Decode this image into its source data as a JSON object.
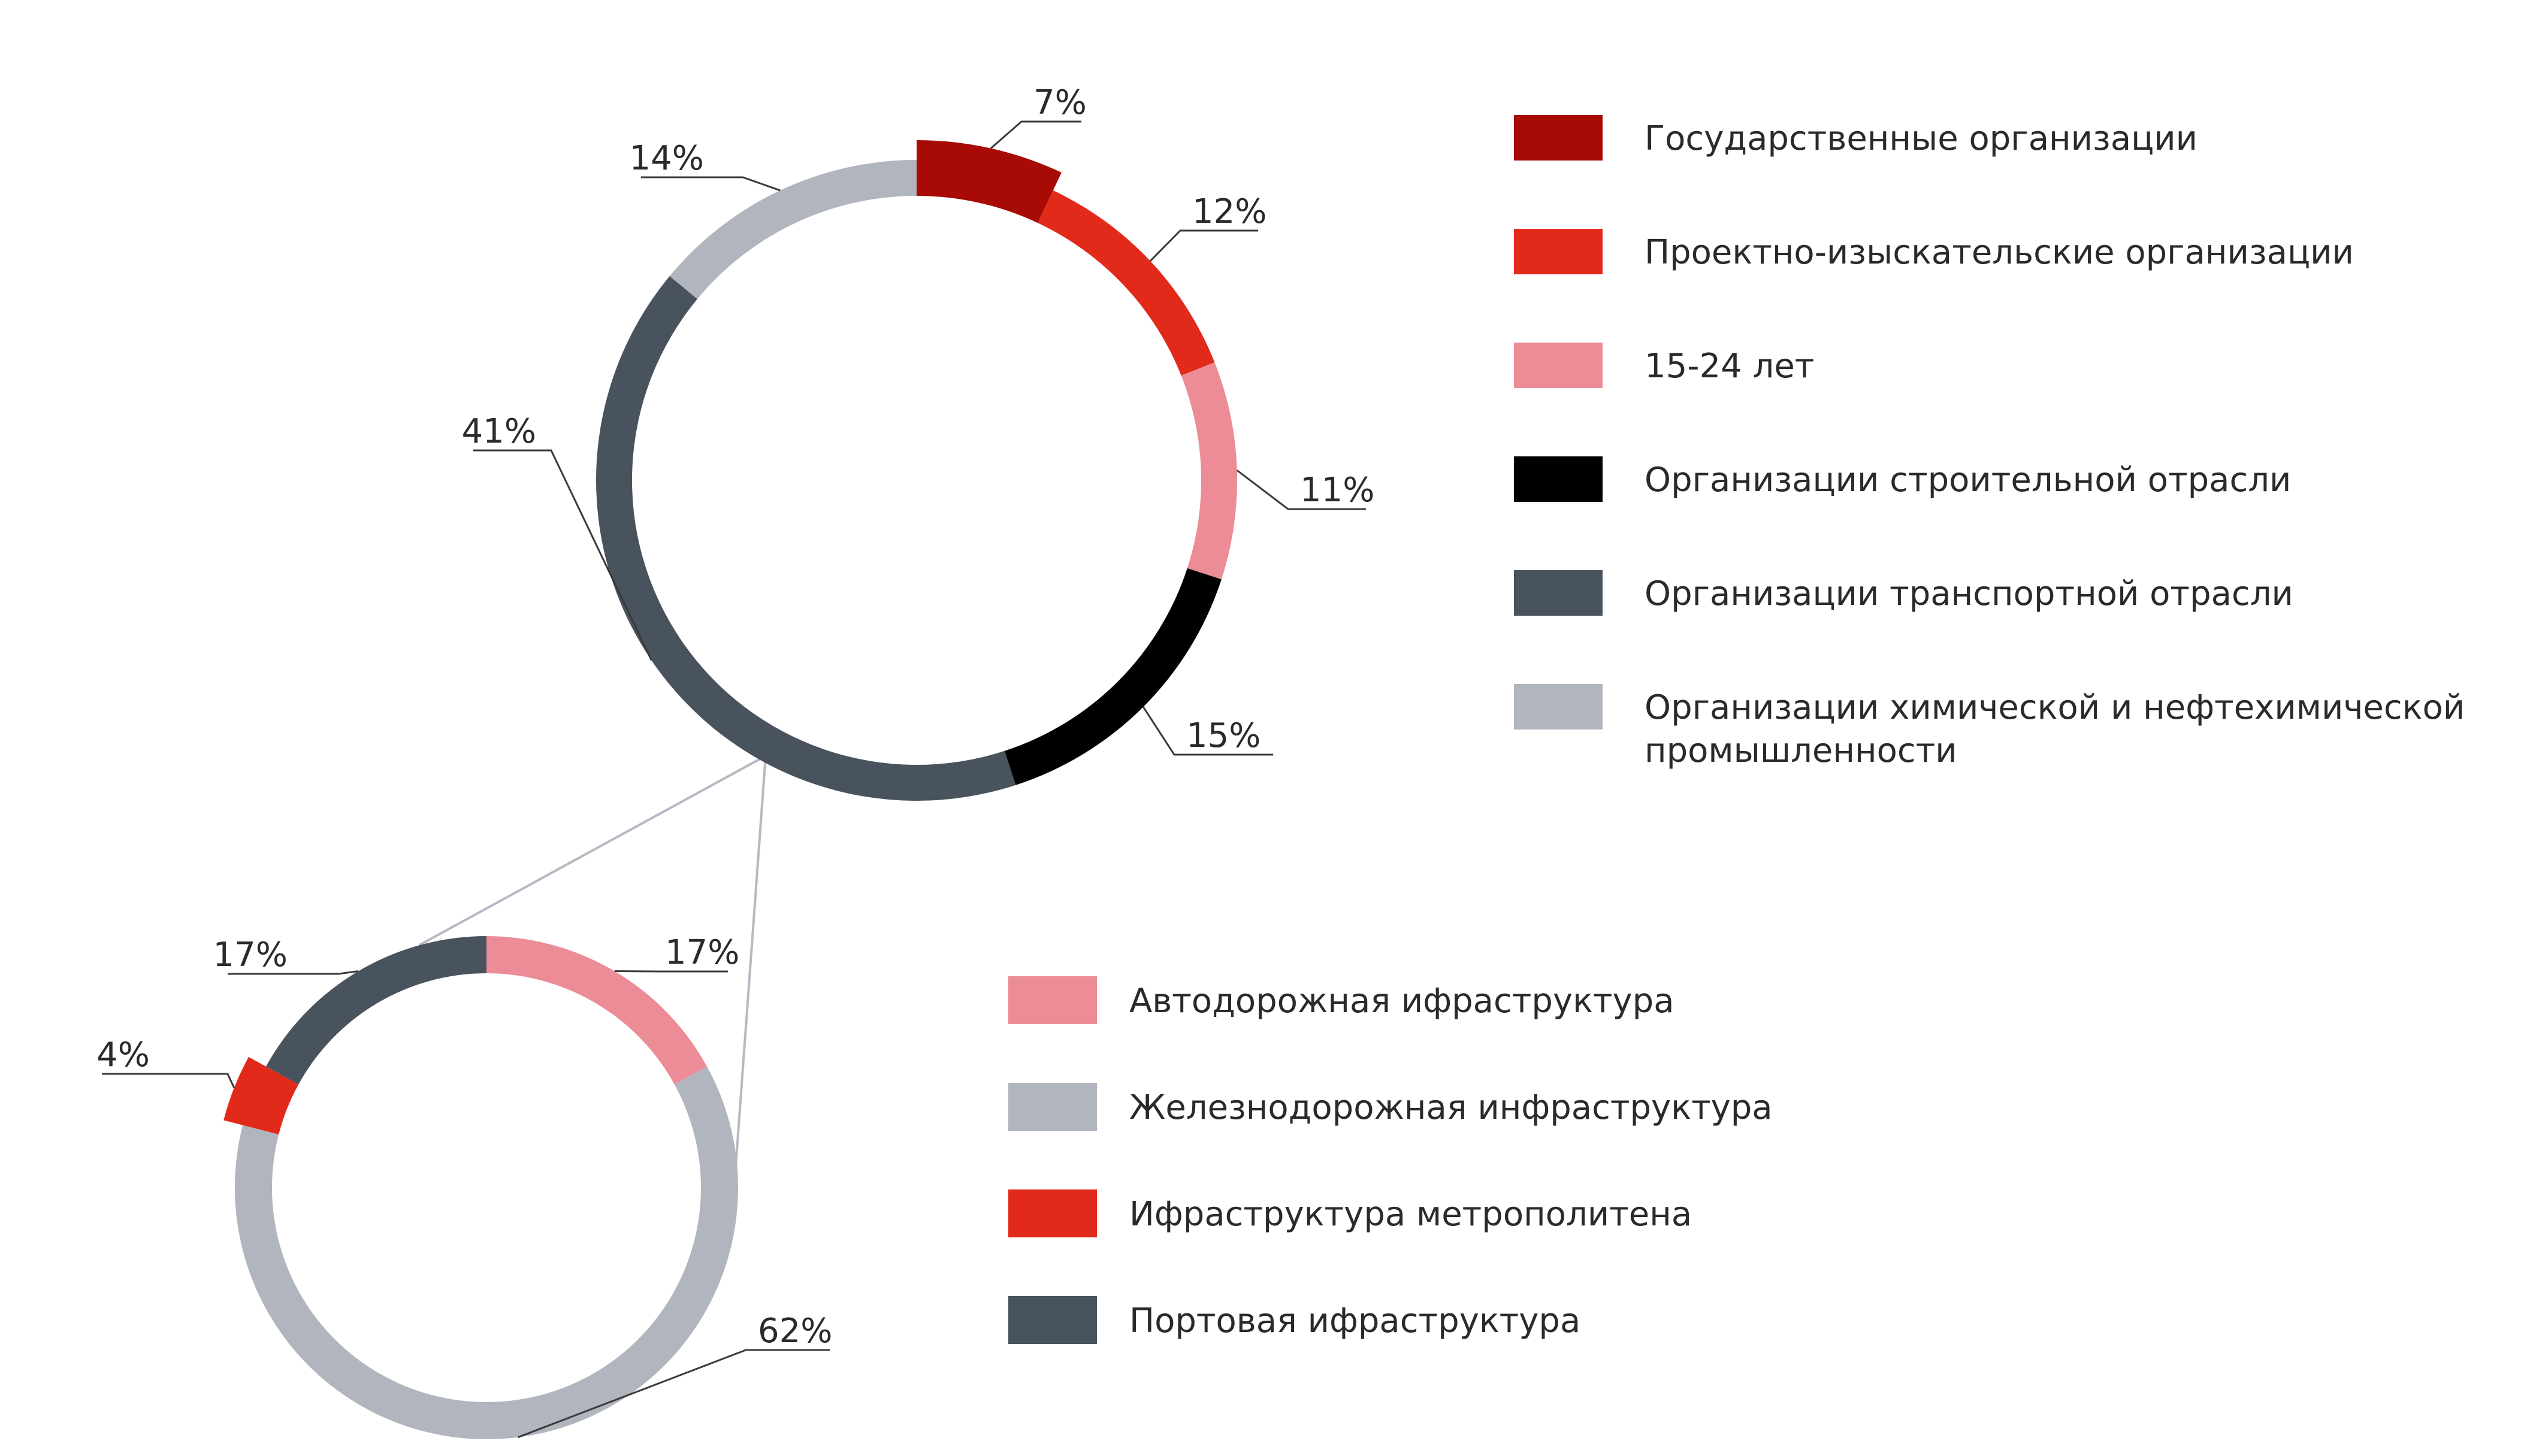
{
  "chart_data": [
    {
      "type": "pie",
      "style": "donut",
      "categories": [
        "Государственные организации",
        "Проектно-изыскательские организации",
        "15-24 лет",
        "Организации строительной отрасли",
        "Организации транспортной отрасли",
        "Организации химической и нефтехимической промышленности"
      ],
      "values": [
        7,
        12,
        11,
        15,
        41,
        14
      ],
      "labels": [
        "7%",
        "12%",
        "11%",
        "15%",
        "41%",
        "14%"
      ],
      "colors": [
        "#a80a05",
        "#e22a1a",
        "#eb8c96",
        "#000000",
        "#48535d",
        "#b1b5be"
      ],
      "legend": [
        {
          "label": "Государственные организации",
          "color": "#a80a05"
        },
        {
          "label": "Проектно-изыскательские организации",
          "color": "#e22a1a"
        },
        {
          "label": "15-24 лет",
          "color": "#eb8c96"
        },
        {
          "label": "Организации строительной отрасли",
          "color": "#000000"
        },
        {
          "label": "Организации транспортной отрасли",
          "color": "#48535d"
        },
        {
          "label": "Организации химической и нефтехимической промышленности",
          "color": "#b1b5be"
        }
      ],
      "legend_position": "right",
      "exploded": [
        "Государственные организации"
      ]
    },
    {
      "type": "pie",
      "style": "donut",
      "categories": [
        "Автодорожная ифраструктура",
        "Железнодорожная инфраструктура",
        "Ифраструктура метрополитена",
        "Портовая ифраструктура"
      ],
      "values": [
        17,
        62,
        4,
        17
      ],
      "labels": [
        "17%",
        "62%",
        "4%",
        "17%"
      ],
      "colors": [
        "#eb8c96",
        "#b1b5be",
        "#e22a1a",
        "#48535d"
      ],
      "legend": [
        {
          "label": "Автодорожная ифраструктура",
          "color": "#eb8c96"
        },
        {
          "label": "Железнодорожная инфраструктура",
          "color": "#b1b5be"
        },
        {
          "label": "Ифраструктура метрополитена",
          "color": "#e22a1a"
        },
        {
          "label": "Портовая ифраструктура",
          "color": "#48535d"
        }
      ],
      "legend_position": "right",
      "exploded": [
        "Ифраструктура метрополитена"
      ],
      "breakdown_of": "Организации транспортной отрасли"
    }
  ]
}
